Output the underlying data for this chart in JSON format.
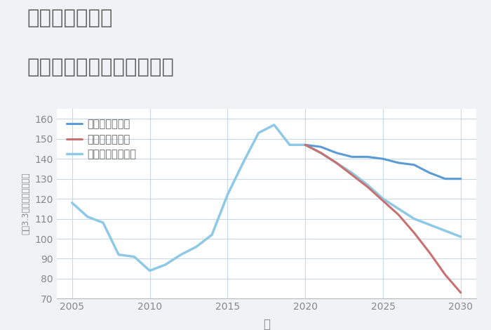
{
  "title_line1": "埼玉県八潮駅の",
  "title_line2": "中古マンションの価格推移",
  "xlabel": "年",
  "ylabel": "坪（3.3㎡）単価（万円）",
  "background_color": "#f0f2f5",
  "plot_bg_color": "#ffffff",
  "grid_color": "#c8d8e8",
  "ylim": [
    70,
    165
  ],
  "yticks": [
    70,
    80,
    90,
    100,
    110,
    120,
    130,
    140,
    150,
    160
  ],
  "xticks": [
    2005,
    2010,
    2015,
    2020,
    2025,
    2030
  ],
  "good_scenario": {
    "label": "グッドシナリオ",
    "color": "#5b9bd5",
    "linewidth": 2.2,
    "x": [
      2020,
      2021,
      2022,
      2023,
      2024,
      2025,
      2026,
      2027,
      2028,
      2029,
      2030
    ],
    "y": [
      147,
      146,
      143,
      141,
      141,
      140,
      138,
      137,
      133,
      130,
      130
    ]
  },
  "bad_scenario": {
    "label": "バッドシナリオ",
    "color": "#c97070",
    "linewidth": 2.2,
    "x": [
      2020,
      2021,
      2022,
      2023,
      2024,
      2025,
      2026,
      2027,
      2028,
      2029,
      2030
    ],
    "y": [
      147,
      143,
      138,
      132,
      126,
      119,
      112,
      103,
      93,
      82,
      73
    ]
  },
  "normal_scenario": {
    "label": "ノーマルシナリオ",
    "color": "#8ecae6",
    "linewidth": 2.5,
    "x": [
      2005,
      2006,
      2007,
      2008,
      2009,
      2010,
      2011,
      2012,
      2013,
      2014,
      2015,
      2016,
      2017,
      2018,
      2019,
      2020,
      2021,
      2022,
      2023,
      2024,
      2025,
      2026,
      2027,
      2028,
      2029,
      2030
    ],
    "y": [
      118,
      111,
      108,
      92,
      91,
      84,
      87,
      92,
      96,
      102,
      122,
      138,
      153,
      157,
      147,
      147,
      143,
      138,
      133,
      127,
      120,
      115,
      110,
      107,
      104,
      101
    ]
  },
  "title_color": "#666666",
  "title_fontsize": 21,
  "axis_label_color": "#888888",
  "tick_color": "#888888",
  "legend_fontsize": 10.5
}
